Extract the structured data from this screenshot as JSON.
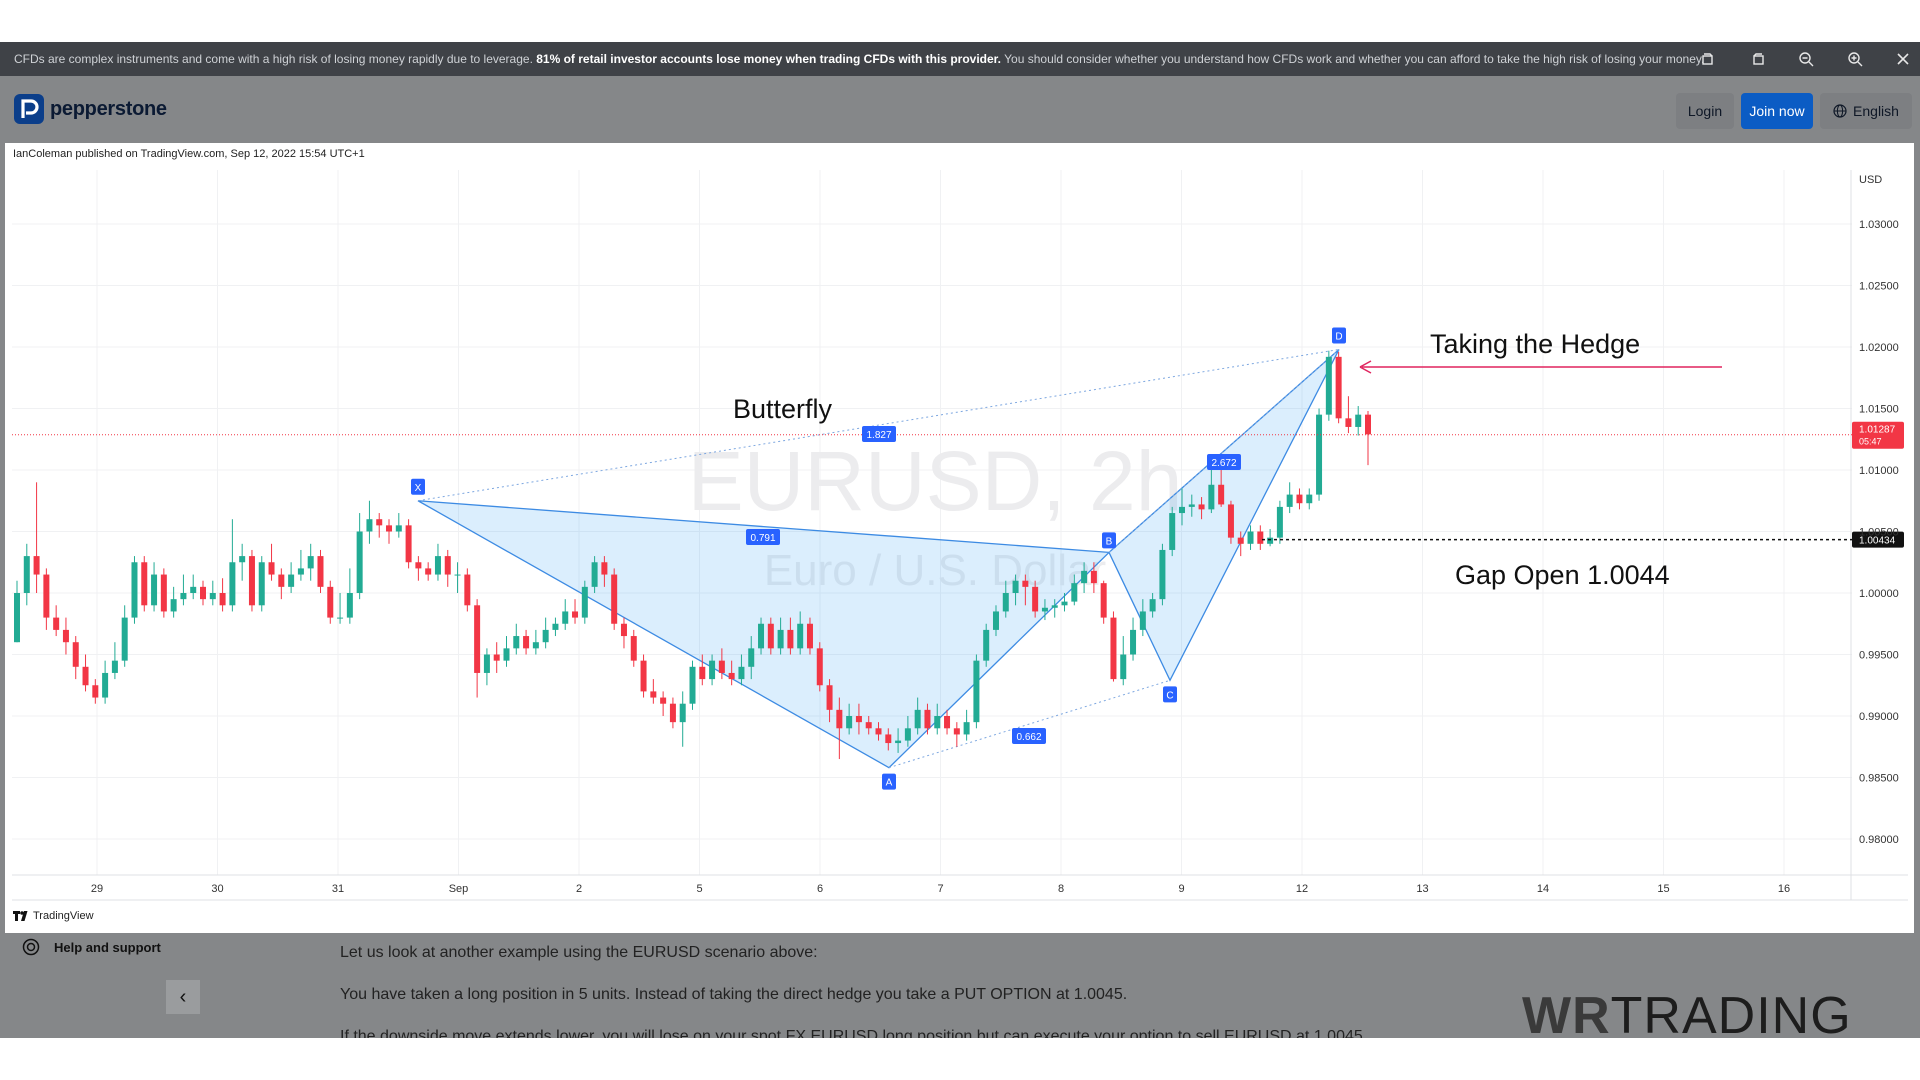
{
  "risk_banner": {
    "text_start": "CFDs are complex instruments and come with a high risk of losing money rapidly due to leverage.",
    "text_bold": "81% of retail investor accounts lose money when trading CFDs with this provider.",
    "text_end": "You should consider whether you understand how CFDs work and whether you can afford to take the high risk of losing your money."
  },
  "header": {
    "brand": "pepperstone",
    "login_label": "Login",
    "join_label": "Join now",
    "language_label": "English"
  },
  "chart": {
    "published_by": "IanColeman published on TradingView.com, Sep 12, 2022 15:54 UTC+1",
    "watermark_symbol": "EURUSD, 2h",
    "watermark_name": "Euro / U.S. Dollar",
    "currency_label": "USD",
    "footer_brand": "TradingView",
    "annotations": {
      "pattern_title": "Butterfly",
      "hedge_label": "Taking the Hedge",
      "gap_label": "Gap Open 1.0044"
    }
  },
  "chart_data": {
    "type": "candlestick",
    "symbol": "EURUSD",
    "interval": "2h",
    "y_ticks": [
      "1.03000",
      "1.02500",
      "1.02000",
      "1.01500",
      "1.01000",
      "1.00500",
      "1.00000",
      "0.99500",
      "0.99000",
      "0.98500",
      "0.98000"
    ],
    "ylim": [
      0.9775,
      1.0355
    ],
    "x_ticks": [
      "29",
      "30",
      "31",
      "Sep",
      "2",
      "5",
      "6",
      "7",
      "8",
      "9",
      "12",
      "13",
      "14",
      "15",
      "16"
    ],
    "last_price": "1.01287",
    "last_price_timer": "05:47",
    "gap_price": "1.00434",
    "pattern_points": [
      {
        "label": "X",
        "value": 1.0075
      },
      {
        "label": "A",
        "value": 0.9858
      },
      {
        "label": "B",
        "value": 1.0033
      },
      {
        "label": "C",
        "value": 0.9929
      },
      {
        "label": "D",
        "value": 1.0198
      }
    ],
    "ratios": [
      "1.827",
      "0.791",
      "2.672",
      "0.662"
    ],
    "candles": [
      [
        0.996,
        1.0,
        1.001,
        0.996
      ],
      [
        1.0,
        1.003,
        1.004,
        0.999
      ],
      [
        1.003,
        1.0015,
        1.009,
        1.0
      ],
      [
        1.0015,
        0.998,
        1.002,
        0.997
      ],
      [
        0.998,
        0.997,
        0.999,
        0.9965
      ],
      [
        0.997,
        0.996,
        0.998,
        0.995
      ],
      [
        0.996,
        0.994,
        0.9965,
        0.993
      ],
      [
        0.994,
        0.9925,
        0.995,
        0.992
      ],
      [
        0.9925,
        0.9915,
        0.993,
        0.991
      ],
      [
        0.9915,
        0.9935,
        0.9945,
        0.991
      ],
      [
        0.9935,
        0.9945,
        0.996,
        0.993
      ],
      [
        0.9945,
        0.998,
        0.999,
        0.994
      ],
      [
        0.998,
        1.0025,
        1.003,
        0.9975
      ],
      [
        1.0025,
        0.999,
        1.003,
        0.9985
      ],
      [
        0.999,
        1.0015,
        1.0025,
        0.9985
      ],
      [
        1.0015,
        0.9985,
        1.002,
        0.998
      ],
      [
        0.9985,
        0.9995,
        1.0005,
        0.998
      ],
      [
        0.9995,
        1.0,
        1.0015,
        0.999
      ],
      [
        1.0,
        1.0005,
        1.0015,
        0.9995
      ],
      [
        1.0005,
        0.9995,
        1.001,
        0.999
      ],
      [
        0.9995,
        1.0,
        1.001,
        0.999
      ],
      [
        1.0,
        0.999,
        1.0012,
        0.9985
      ],
      [
        0.999,
        1.0025,
        1.006,
        0.9985
      ],
      [
        1.0025,
        1.003,
        1.004,
        1.001
      ],
      [
        1.003,
        0.999,
        1.0035,
        0.9985
      ],
      [
        0.999,
        1.0025,
        1.003,
        0.9985
      ],
      [
        1.0025,
        1.0015,
        1.004,
        1.001
      ],
      [
        1.0015,
        1.0005,
        1.002,
        0.9995
      ],
      [
        1.0005,
        1.0015,
        1.0025,
        1.0
      ],
      [
        1.0015,
        1.002,
        1.0035,
        1.001
      ],
      [
        1.002,
        1.003,
        1.004,
        1.001
      ],
      [
        1.003,
        1.0005,
        1.0035,
        1.0
      ],
      [
        1.0005,
        0.998,
        1.001,
        0.9975
      ],
      [
        0.998,
        0.998,
        1.0,
        0.9975
      ],
      [
        0.998,
        1.0,
        1.002,
        0.9975
      ],
      [
        1.0,
        1.005,
        1.0065,
        0.9995
      ],
      [
        1.005,
        1.006,
        1.0075,
        1.004
      ],
      [
        1.006,
        1.0055,
        1.0065,
        1.0045
      ],
      [
        1.0055,
        1.005,
        1.006,
        1.004
      ],
      [
        1.005,
        1.0055,
        1.0065,
        1.0045
      ],
      [
        1.0055,
        1.0025,
        1.006,
        1.002
      ],
      [
        1.0025,
        1.002,
        1.003,
        1.001
      ],
      [
        1.002,
        1.0015,
        1.0025,
        1.001
      ],
      [
        1.0015,
        1.003,
        1.004,
        1.001
      ],
      [
        1.003,
        1.0015,
        1.0035,
        1.0005
      ],
      [
        1.0015,
        1.0015,
        1.0025,
        1.0
      ],
      [
        1.0015,
        0.999,
        1.002,
        0.9985
      ],
      [
        0.999,
        0.9935,
        0.9995,
        0.9915
      ],
      [
        0.9935,
        0.995,
        0.9955,
        0.9925
      ],
      [
        0.995,
        0.9945,
        0.996,
        0.9935
      ],
      [
        0.9945,
        0.9955,
        0.9965,
        0.994
      ],
      [
        0.9955,
        0.9965,
        0.9975,
        0.995
      ],
      [
        0.9965,
        0.9955,
        0.997,
        0.995
      ],
      [
        0.9955,
        0.996,
        0.997,
        0.995
      ],
      [
        0.996,
        0.997,
        0.998,
        0.9955
      ],
      [
        0.997,
        0.9975,
        0.998,
        0.9965
      ],
      [
        0.9975,
        0.9985,
        0.9995,
        0.997
      ],
      [
        0.9985,
        0.998,
        0.9995,
        0.9975
      ],
      [
        0.998,
        1.0005,
        1.001,
        0.9975
      ],
      [
        1.0005,
        1.0025,
        1.003,
        1.0
      ],
      [
        1.0025,
        1.0015,
        1.003,
        1.0005
      ],
      [
        1.0015,
        0.9975,
        1.002,
        0.997
      ],
      [
        0.9975,
        0.9965,
        0.998,
        0.9955
      ],
      [
        0.9965,
        0.9945,
        0.997,
        0.994
      ],
      [
        0.9945,
        0.992,
        0.995,
        0.9915
      ],
      [
        0.992,
        0.9915,
        0.993,
        0.991
      ],
      [
        0.9915,
        0.991,
        0.992,
        0.99
      ],
      [
        0.991,
        0.9895,
        0.9915,
        0.989
      ],
      [
        0.9895,
        0.991,
        0.992,
        0.9875
      ],
      [
        0.991,
        0.994,
        0.9945,
        0.9905
      ],
      [
        0.994,
        0.993,
        0.995,
        0.9925
      ],
      [
        0.993,
        0.9945,
        0.995,
        0.9925
      ],
      [
        0.9945,
        0.9935,
        0.9955,
        0.993
      ],
      [
        0.9935,
        0.993,
        0.9945,
        0.9925
      ],
      [
        0.993,
        0.994,
        0.995,
        0.9925
      ],
      [
        0.994,
        0.9955,
        0.9965,
        0.993
      ],
      [
        0.9955,
        0.9975,
        0.998,
        0.995
      ],
      [
        0.9975,
        0.9955,
        0.998,
        0.995
      ],
      [
        0.9955,
        0.997,
        0.998,
        0.995
      ],
      [
        0.997,
        0.9955,
        0.998,
        0.995
      ],
      [
        0.9955,
        0.9975,
        0.9985,
        0.995
      ],
      [
        0.9975,
        0.9955,
        0.998,
        0.995
      ],
      [
        0.9955,
        0.9925,
        0.996,
        0.992
      ],
      [
        0.9925,
        0.9905,
        0.993,
        0.9895
      ],
      [
        0.9905,
        0.989,
        0.9915,
        0.9865
      ],
      [
        0.989,
        0.99,
        0.991,
        0.9885
      ],
      [
        0.99,
        0.9895,
        0.991,
        0.9885
      ],
      [
        0.9895,
        0.989,
        0.99,
        0.9885
      ],
      [
        0.989,
        0.9885,
        0.9895,
        0.988
      ],
      [
        0.9885,
        0.9878,
        0.989,
        0.9872
      ],
      [
        0.9878,
        0.988,
        0.989,
        0.987
      ],
      [
        0.988,
        0.989,
        0.99,
        0.9875
      ],
      [
        0.989,
        0.9905,
        0.9915,
        0.9885
      ],
      [
        0.9905,
        0.989,
        0.991,
        0.9885
      ],
      [
        0.989,
        0.99,
        0.991,
        0.9885
      ],
      [
        0.99,
        0.989,
        0.9905,
        0.9885
      ],
      [
        0.989,
        0.9885,
        0.9895,
        0.9875
      ],
      [
        0.9885,
        0.9895,
        0.9905,
        0.988
      ],
      [
        0.9895,
        0.9945,
        0.995,
        0.989
      ],
      [
        0.9945,
        0.997,
        0.9975,
        0.994
      ],
      [
        0.997,
        0.9985,
        0.999,
        0.9965
      ],
      [
        0.9985,
        1.0,
        1.001,
        0.998
      ],
      [
        1.0,
        1.001,
        1.0015,
        0.999
      ],
      [
        1.001,
        1.0005,
        1.0015,
        0.999
      ],
      [
        1.0005,
        0.9985,
        1.001,
        0.998
      ],
      [
        0.9985,
        0.9988,
        0.9995,
        0.9978
      ],
      [
        0.9988,
        0.999,
        0.9995,
        0.998
      ],
      [
        0.999,
        0.9993,
        1.0,
        0.9985
      ],
      [
        0.9993,
        1.0008,
        1.0015,
        0.999
      ],
      [
        1.0008,
        1.0018,
        1.0025,
        1.0
      ],
      [
        1.0018,
        1.0008,
        1.0025,
        1.0
      ],
      [
        1.0008,
        0.998,
        1.001,
        0.9975
      ],
      [
        0.998,
        0.993,
        0.9985,
        0.9928
      ],
      [
        0.993,
        0.995,
        0.9965,
        0.9925
      ],
      [
        0.995,
        0.997,
        0.998,
        0.9945
      ],
      [
        0.997,
        0.9985,
        0.9995,
        0.9965
      ],
      [
        0.9985,
        0.9995,
        1.0,
        0.998
      ],
      [
        0.9995,
        1.0035,
        1.004,
        0.999
      ],
      [
        1.0035,
        1.0065,
        1.007,
        1.003
      ],
      [
        1.0065,
        1.007,
        1.0085,
        1.0055
      ],
      [
        1.007,
        1.0072,
        1.008,
        1.0062
      ],
      [
        1.0072,
        1.0068,
        1.0078,
        1.006
      ],
      [
        1.0068,
        1.0088,
        1.0102,
        1.0065
      ],
      [
        1.0088,
        1.0072,
        1.0105,
        1.007
      ],
      [
        1.0072,
        1.0045,
        1.0075,
        1.004
      ],
      [
        1.0045,
        1.004,
        1.005,
        1.003
      ],
      [
        1.004,
        1.005,
        1.0055,
        1.0035
      ],
      [
        1.005,
        1.004,
        1.0055,
        1.0035
      ],
      [
        1.004,
        1.0045,
        1.0052,
        1.0038
      ],
      [
        1.0045,
        1.007,
        1.0075,
        1.004
      ],
      [
        1.007,
        1.008,
        1.009,
        1.0065
      ],
      [
        1.008,
        1.0073,
        1.0085,
        1.0068
      ],
      [
        1.0073,
        1.008,
        1.0085,
        1.0068
      ],
      [
        1.008,
        1.0145,
        1.015,
        1.0075
      ],
      [
        1.0145,
        1.0192,
        1.0197,
        1.014
      ],
      [
        1.0192,
        1.0142,
        1.0196,
        1.0138
      ],
      [
        1.0142,
        1.0135,
        1.016,
        1.013
      ],
      [
        1.0135,
        1.0145,
        1.0152,
        1.0128
      ],
      [
        1.0145,
        1.0129,
        1.0148,
        1.0104
      ]
    ]
  }
}
